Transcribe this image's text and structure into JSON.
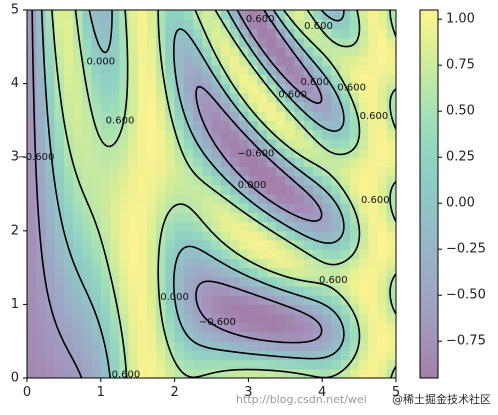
{
  "chart_data": {
    "type": "heatmap",
    "title": "",
    "xlabel": "",
    "ylabel": "",
    "xlim": [
      0,
      5
    ],
    "ylim": [
      0,
      5
    ],
    "x_ticks": [
      "0",
      "1",
      "2",
      "3",
      "4",
      "5"
    ],
    "y_ticks": [
      "0",
      "1",
      "2",
      "3",
      "4",
      "5"
    ],
    "colormap": "viridis",
    "alpha": 0.5,
    "colorbar": {
      "ticks": [
        "−0.75",
        "−0.50",
        "−0.25",
        "0.00",
        "0.25",
        "0.50",
        "0.75",
        "1.00"
      ],
      "tick_values": [
        -0.75,
        -0.5,
        -0.25,
        0.0,
        0.25,
        0.5,
        0.75,
        1.0
      ],
      "range": [
        -0.95,
        1.05
      ]
    },
    "contour_levels": [
      -0.6,
      0.0,
      0.6
    ],
    "negative_linestyle": "dashed",
    "contour_labels": [
      {
        "text": "0.000",
        "x": 1.0,
        "y": 4.3
      },
      {
        "text": "0.600",
        "x": 1.26,
        "y": 3.5
      },
      {
        "text": "0.600",
        "x": 3.16,
        "y": 4.88
      },
      {
        "text": "0.600",
        "x": 3.95,
        "y": 4.78
      },
      {
        "text": "0.600",
        "x": 3.6,
        "y": 3.85
      },
      {
        "text": "0.600",
        "x": 3.9,
        "y": 4.02
      },
      {
        "text": "0.600",
        "x": 4.4,
        "y": 3.95
      },
      {
        "text": "0.600",
        "x": 4.7,
        "y": 3.56
      },
      {
        "text": "0.600",
        "x": 4.72,
        "y": 2.42
      },
      {
        "text": "0.600",
        "x": 4.15,
        "y": 1.33
      },
      {
        "text": "0.600",
        "x": 1.34,
        "y": 0.05
      },
      {
        "text": "−0.600",
        "x": 0.12,
        "y": 3.0
      },
      {
        "text": "−0.600",
        "x": 3.1,
        "y": 3.05
      },
      {
        "text": "−0.600",
        "x": 2.58,
        "y": 0.76
      },
      {
        "text": "0.000",
        "x": 3.05,
        "y": 2.62
      },
      {
        "text": "0.000",
        "x": 2.0,
        "y": 1.1
      }
    ],
    "z_function": "sin(x)^10 + cos(10 + y*x) * cos(x)"
  },
  "watermark": {
    "url_text": "http://blog.csdn.net/wei",
    "site_text": "@稀土掘金技术社区"
  }
}
